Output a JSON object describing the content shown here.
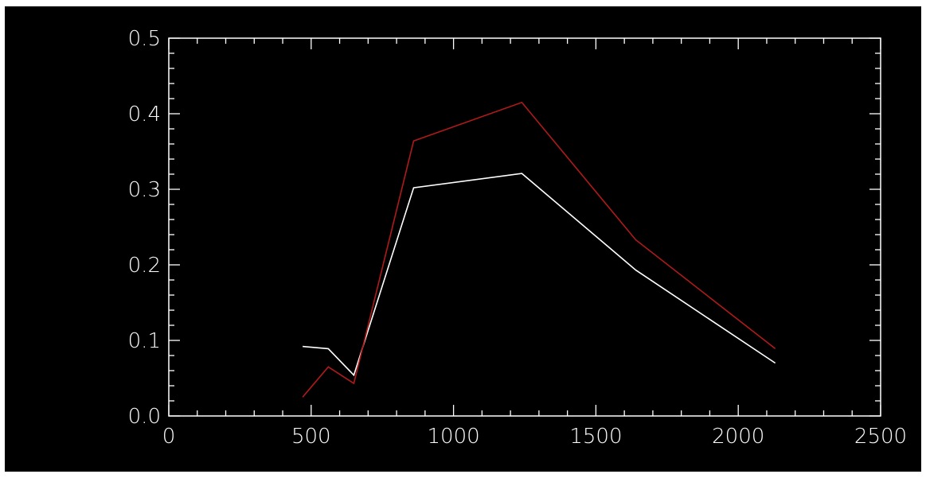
{
  "chart_data": {
    "type": "line",
    "title": "",
    "xlabel": "",
    "ylabel": "",
    "xlim": [
      0,
      2500
    ],
    "ylim": [
      0,
      0.5
    ],
    "xticks": [
      0,
      500,
      1000,
      1500,
      2000,
      2500
    ],
    "xtick_labels": [
      "0",
      "500",
      "1000",
      "1500",
      "2000",
      "2500"
    ],
    "yticks": [
      0,
      0.1,
      0.2,
      0.3,
      0.4,
      0.5
    ],
    "ytick_labels": [
      "0.0",
      "0.1",
      "0.2",
      "0.3",
      "0.4",
      "0.5"
    ],
    "grid": false,
    "series": [
      {
        "color": "#ffffff",
        "x": [
          470,
          560,
          650,
          860,
          1240,
          1640,
          2130
        ],
        "y": [
          0.092,
          0.089,
          0.054,
          0.302,
          0.321,
          0.193,
          0.07
        ]
      },
      {
        "color": "#b01a1a",
        "x": [
          470,
          560,
          650,
          860,
          1240,
          1640,
          2130
        ],
        "y": [
          0.025,
          0.065,
          0.043,
          0.364,
          0.415,
          0.233,
          0.089
        ]
      }
    ]
  },
  "colors": {
    "background": "#000000",
    "axes": "#ffffff"
  }
}
